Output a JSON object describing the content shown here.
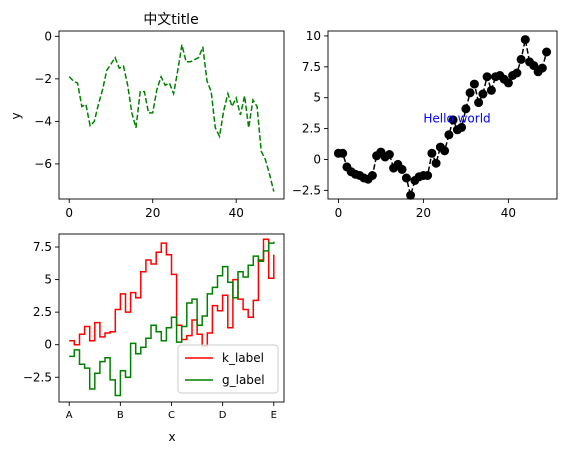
{
  "chart_data": [
    {
      "type": "line",
      "title": "中文title",
      "xlabel": "",
      "ylabel": "y",
      "xlim": [
        -2.45,
        51.45
      ],
      "ylim": [
        -7.65,
        0.25
      ],
      "xticks": [
        0,
        20,
        40
      ],
      "yticks": [
        0,
        -2,
        -4,
        -6
      ],
      "grid": false,
      "series": [
        {
          "color": "#008000",
          "style": "dashed",
          "x": [
            0,
            1,
            2,
            3,
            4,
            5,
            6,
            7,
            8,
            9,
            10,
            11,
            12,
            13,
            14,
            15,
            16,
            17,
            18,
            19,
            20,
            21,
            22,
            23,
            24,
            25,
            26,
            27,
            28,
            29,
            30,
            31,
            32,
            33,
            34,
            35,
            36,
            37,
            38,
            39,
            40,
            41,
            42,
            43,
            44,
            45,
            46,
            47,
            48,
            49
          ],
          "y": [
            -1.9,
            -2.1,
            -2.2,
            -3.3,
            -3.2,
            -4.2,
            -4.0,
            -3.2,
            -2.5,
            -1.6,
            -1.3,
            -1.0,
            -1.5,
            -1.4,
            -2.3,
            -3.6,
            -4.3,
            -2.6,
            -2.6,
            -3.6,
            -3.6,
            -2.5,
            -1.9,
            -2.3,
            -2.2,
            -2.7,
            -1.6,
            -0.4,
            -1.2,
            -1.2,
            -1.1,
            -1.0,
            -0.5,
            -2.1,
            -2.6,
            -4.3,
            -4.7,
            -3.5,
            -2.7,
            -3.3,
            -2.9,
            -3.7,
            -2.8,
            -4.3,
            -3.0,
            -3.3,
            -5.4,
            -5.8,
            -6.5,
            -7.3
          ]
        }
      ]
    },
    {
      "type": "line",
      "title": "",
      "xlabel": "",
      "ylabel": "",
      "xlim": [
        -2.45,
        51.45
      ],
      "ylim": [
        -3.2,
        10.4
      ],
      "xticks": [
        0,
        20,
        40
      ],
      "yticks": [
        -2.5,
        0.0,
        2.5,
        5.0,
        7.5,
        10.0
      ],
      "grid": false,
      "annotations": [
        {
          "text": "Hello world",
          "x": 20,
          "y": 3.0,
          "color": "#0000ff"
        }
      ],
      "series": [
        {
          "color": "#000000",
          "style": "dashed-with-circle-markers",
          "x": [
            0,
            1,
            2,
            3,
            4,
            5,
            6,
            7,
            8,
            9,
            10,
            11,
            12,
            13,
            14,
            15,
            16,
            17,
            18,
            19,
            20,
            21,
            22,
            23,
            24,
            25,
            26,
            27,
            28,
            29,
            30,
            31,
            32,
            33,
            34,
            35,
            36,
            37,
            38,
            39,
            40,
            41,
            42,
            43,
            44,
            45,
            46,
            47,
            48,
            49
          ],
          "y": [
            0.5,
            0.5,
            -0.6,
            -1.0,
            -1.2,
            -1.3,
            -1.5,
            -1.6,
            -1.3,
            0.3,
            0.6,
            0.2,
            0.4,
            -0.7,
            -0.4,
            -0.8,
            -1.5,
            -2.9,
            -1.7,
            -1.4,
            -1.3,
            -1.3,
            0.5,
            -0.3,
            1.0,
            0.7,
            2.0,
            3.2,
            2.4,
            2.6,
            4.1,
            5.4,
            6.1,
            4.6,
            5.3,
            6.7,
            5.6,
            6.7,
            6.8,
            6.5,
            6.2,
            6.8,
            7.0,
            8.1,
            9.7,
            7.9,
            7.6,
            7.1,
            7.4,
            8.7
          ]
        }
      ]
    },
    {
      "type": "line",
      "title": "",
      "xlabel": "x",
      "ylabel": "",
      "xlim": [
        -0.2,
        4.2
      ],
      "ylim": [
        -4.4,
        8.5
      ],
      "xticks": [
        "A",
        "B",
        "C",
        "D",
        "E"
      ],
      "yticks": [
        -2.5,
        0.0,
        2.5,
        5.0,
        7.5
      ],
      "grid": false,
      "legend_position": "lower-right",
      "series": [
        {
          "name": "k_label",
          "color": "#ff0000",
          "style": "step",
          "x": [
            0.0,
            0.1,
            0.2,
            0.3,
            0.4,
            0.5,
            0.6,
            0.7,
            0.8,
            0.9,
            1.0,
            1.1,
            1.2,
            1.3,
            1.4,
            1.5,
            1.6,
            1.7,
            1.8,
            1.9,
            2.0,
            2.1,
            2.2,
            2.3,
            2.4,
            2.5,
            2.6,
            2.7,
            2.8,
            2.9,
            3.0,
            3.1,
            3.2,
            3.3,
            3.4,
            3.5,
            3.6,
            3.7,
            3.8,
            3.9,
            4.0
          ],
          "y": [
            0.3,
            0.0,
            0.8,
            1.4,
            0.3,
            1.7,
            0.6,
            0.9,
            1.0,
            2.7,
            3.9,
            2.5,
            4.0,
            3.6,
            5.6,
            6.5,
            6.2,
            7.1,
            7.8,
            6.9,
            5.4,
            1.5,
            0.4,
            0.7,
            1.9,
            0.8,
            -0.1,
            0.9,
            3.0,
            2.6,
            3.8,
            1.3,
            5.0,
            3.5,
            2.7,
            2.1,
            3.4,
            6.5,
            8.1,
            5.1,
            6.9
          ]
        },
        {
          "name": "g_label",
          "color": "#008000",
          "style": "step",
          "x": [
            0.0,
            0.1,
            0.2,
            0.3,
            0.4,
            0.5,
            0.6,
            0.7,
            0.8,
            0.9,
            1.0,
            1.1,
            1.2,
            1.3,
            1.4,
            1.5,
            1.6,
            1.7,
            1.8,
            1.9,
            2.0,
            2.1,
            2.2,
            2.3,
            2.4,
            2.5,
            2.6,
            2.7,
            2.8,
            2.9,
            3.0,
            3.1,
            3.2,
            3.3,
            3.4,
            3.5,
            3.6,
            3.7,
            3.8,
            3.9,
            4.0
          ],
          "y": [
            -0.9,
            -0.4,
            -1.5,
            -1.8,
            -3.4,
            -2.2,
            -1.3,
            -1.0,
            -2.7,
            -3.9,
            -2.0,
            -2.5,
            0.1,
            -0.7,
            -0.2,
            0.5,
            1.5,
            1.0,
            0.3,
            1.3,
            2.1,
            0.2,
            1.4,
            3.2,
            3.5,
            1.5,
            2.2,
            3.9,
            4.4,
            5.3,
            6.0,
            4.8,
            3.6,
            5.6,
            5.2,
            6.1,
            6.8,
            6.4,
            7.2,
            7.8,
            7.9
          ]
        }
      ]
    }
  ]
}
